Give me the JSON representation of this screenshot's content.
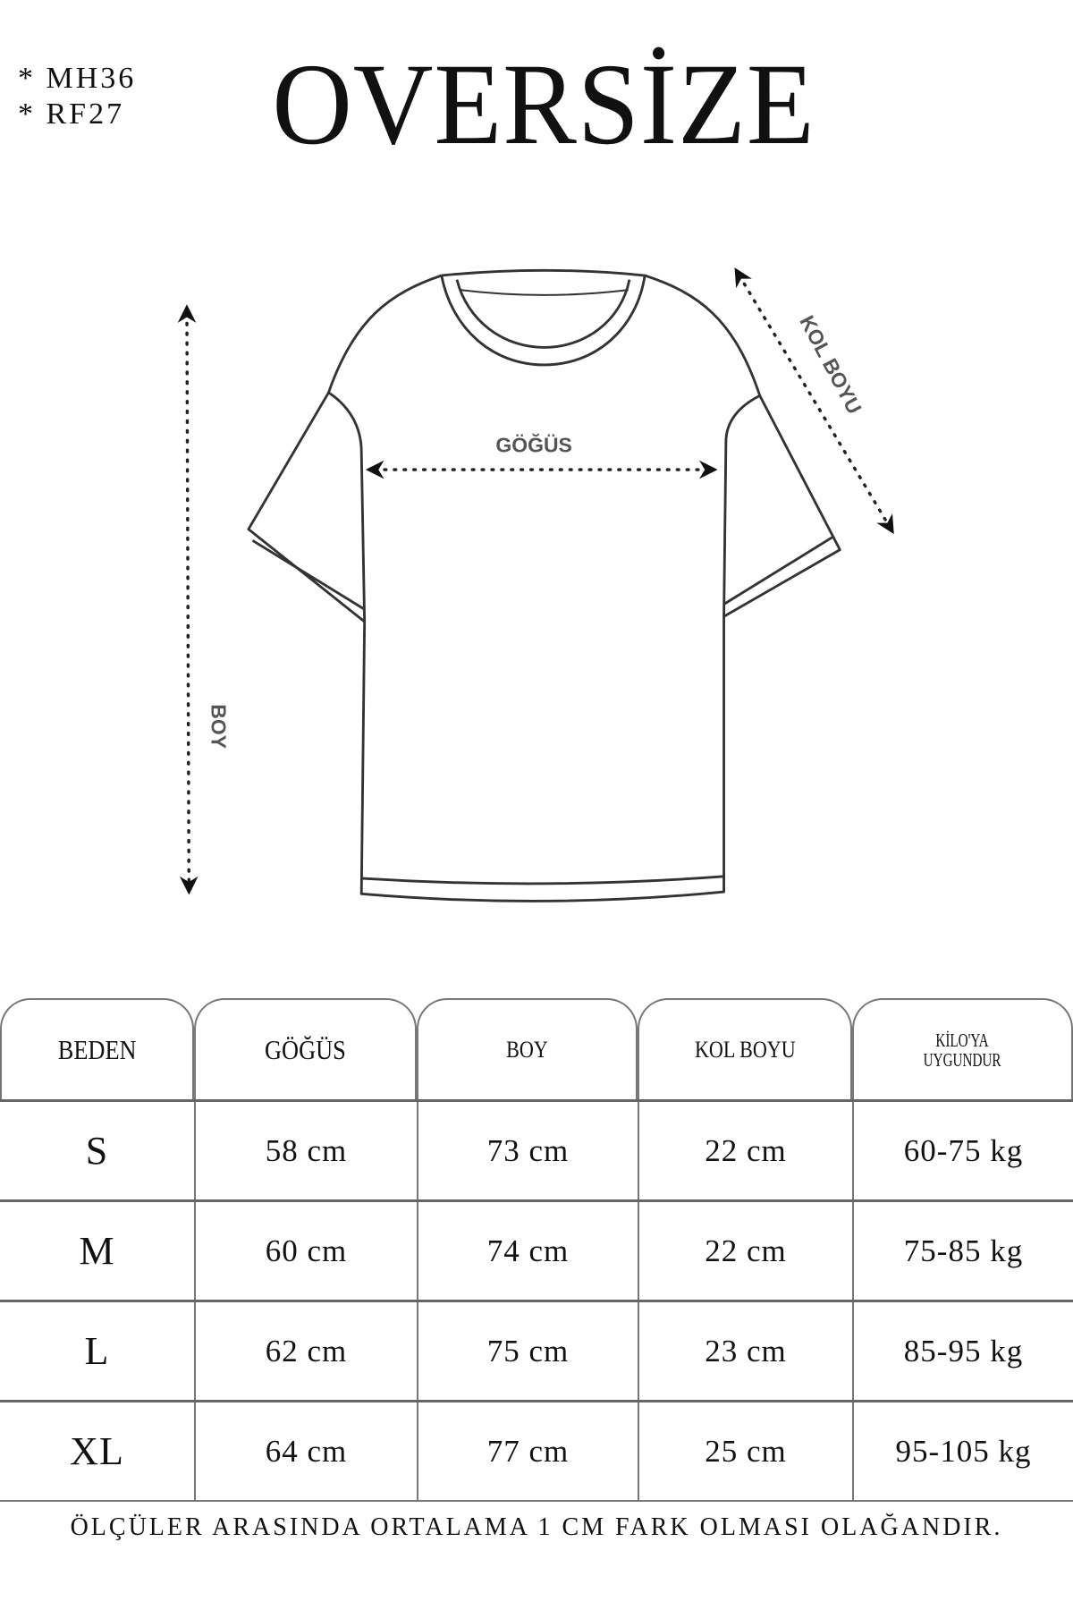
{
  "codes": [
    "*  MH36",
    "*  RF27"
  ],
  "title": "OVERSİZE",
  "diagram": {
    "chest_label": "GÖĞÜS",
    "length_label": "BOY",
    "sleeve_label": "KOL BOYU"
  },
  "table": {
    "headers": [
      "BEDEN",
      "GÖĞÜS",
      "BOY",
      "KOL BOYU",
      "KİLO'YA UYGUNDUR"
    ],
    "header_kilo_lines": [
      "KİLO'YA",
      "UYGUNDUR"
    ],
    "rows": [
      [
        "S",
        "58 cm",
        "73 cm",
        "22  cm",
        "60-75 kg"
      ],
      [
        "M",
        "60 cm",
        "74 cm",
        "22 cm",
        "75-85 kg"
      ],
      [
        "L",
        "62 cm",
        "75 cm",
        "23 cm",
        "85-95 kg"
      ],
      [
        "XL",
        "64 cm",
        "77 cm",
        "25 cm",
        "95-105 kg"
      ]
    ]
  },
  "footer": "ÖLÇÜLER ARASINDA ORTALAMA 1 CM FARK OLMASI OLAĞANDIR."
}
